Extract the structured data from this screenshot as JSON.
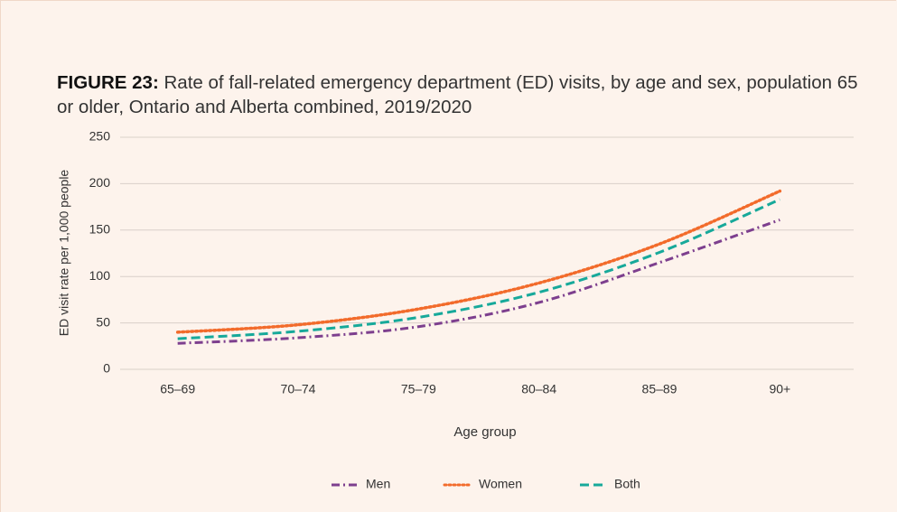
{
  "chart_data": {
    "type": "line",
    "title_label": "FIGURE 23:",
    "title": "Rate of fall-related emergency department (ED) visits, by age and sex, population 65 or older, Ontario and Alberta combined, 2019/2020",
    "x_label": "Age group",
    "y_label": "ED visit rate per 1,000 people",
    "categories": [
      "65–69",
      "70–74",
      "75–79",
      "80–84",
      "85–89",
      "90+"
    ],
    "series": [
      {
        "name": "Men",
        "color": "#7d3f8e",
        "style": "dash-dot",
        "values": [
          28,
          34,
          46,
          72,
          115,
          161
        ]
      },
      {
        "name": "Women",
        "color": "#f26b2b",
        "style": "dotted",
        "values": [
          40,
          48,
          65,
          93,
          135,
          192
        ]
      },
      {
        "name": "Both",
        "color": "#17a99a",
        "style": "dashed",
        "values": [
          33,
          41,
          56,
          83,
          126,
          183
        ]
      }
    ],
    "ylim": [
      0,
      250
    ],
    "yticks": [
      0,
      50,
      100,
      150,
      200,
      250
    ],
    "grid": true,
    "legend": "bottom"
  }
}
